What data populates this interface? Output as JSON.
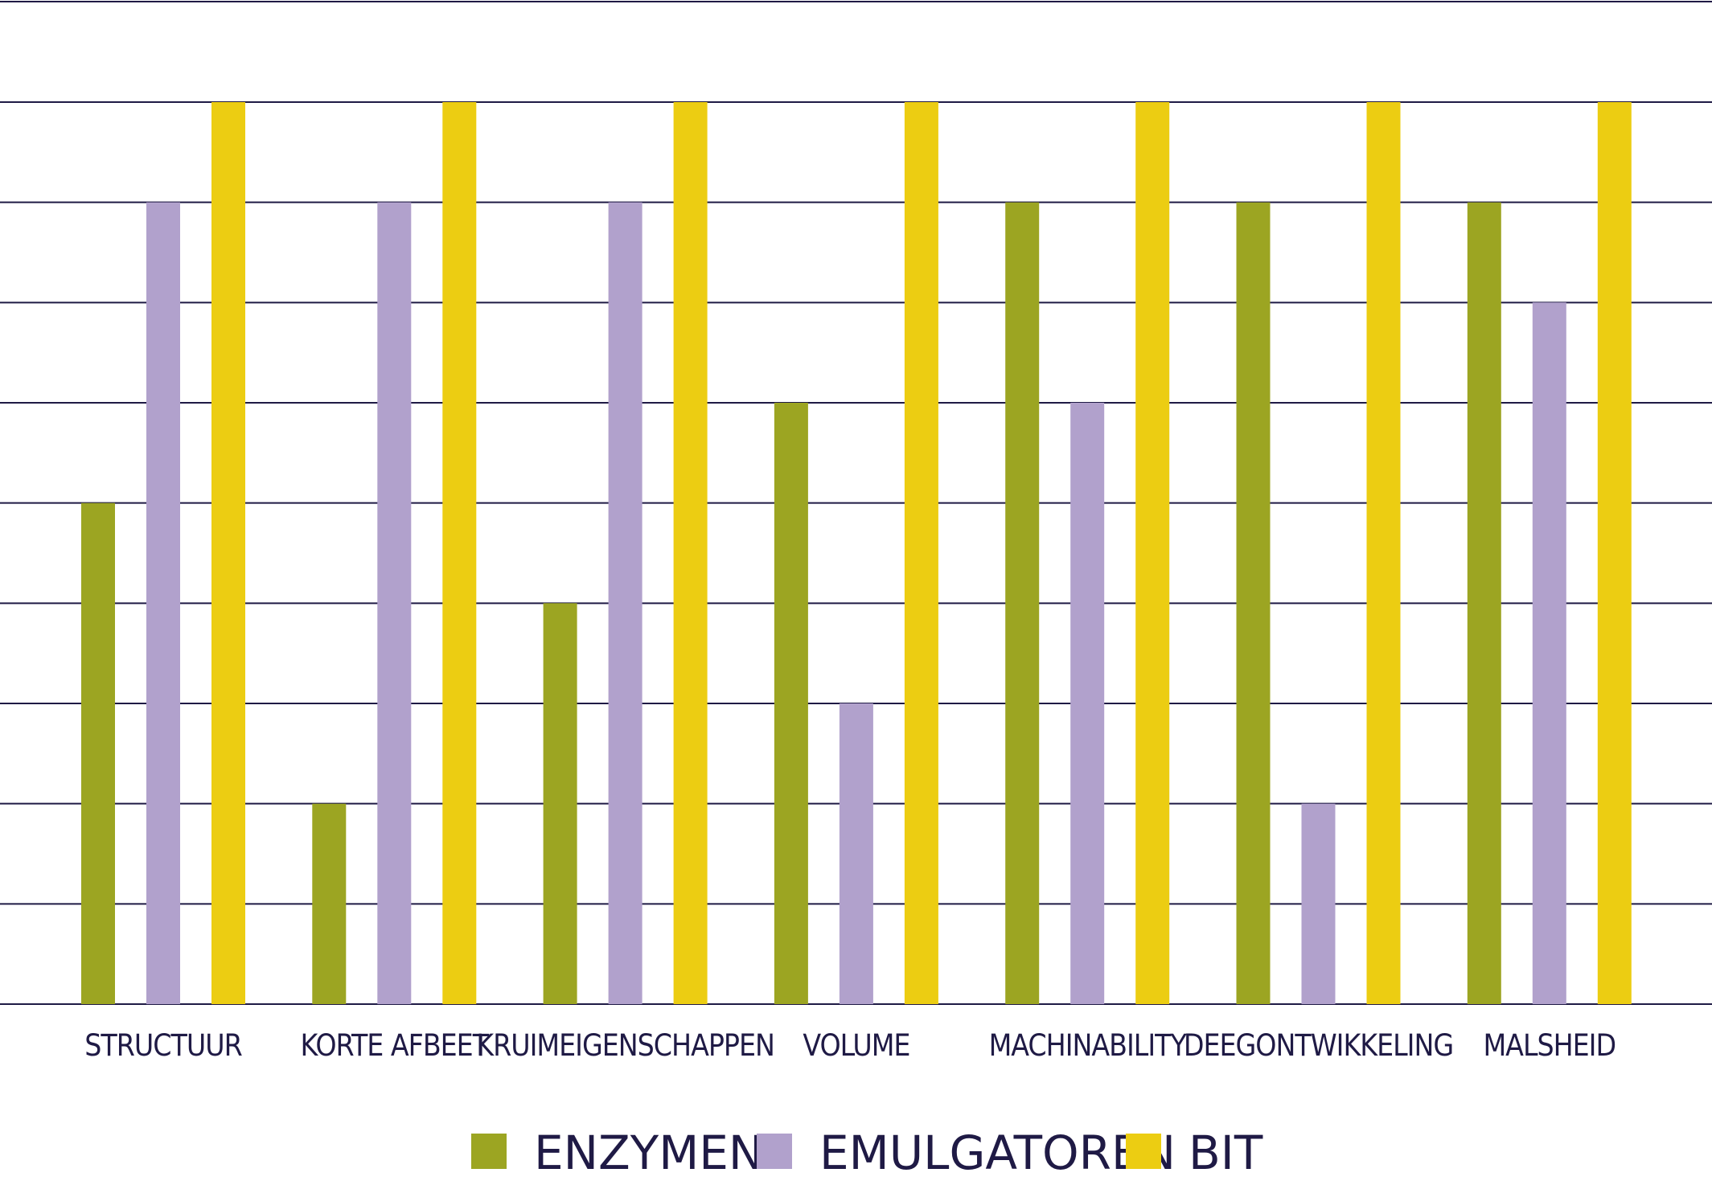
{
  "chart_data": {
    "type": "bar",
    "title": "",
    "xlabel": "",
    "ylabel": "",
    "ylim": [
      0,
      9
    ],
    "grid": true,
    "legend_position": "bottom",
    "categories": [
      "STRUCTUUR",
      "KORTE AFBEET",
      "KRUIMEIGENSCHAPPEN",
      "VOLUME",
      "MACHINABILITY",
      "DEEGONTWIKKELING",
      "MALSHEID"
    ],
    "series": [
      {
        "name": "ENZYMEN",
        "color": "#9ca522",
        "values": [
          5,
          2,
          4,
          6,
          8,
          8,
          8
        ]
      },
      {
        "name": "EMULGATOREN",
        "color": "#b1a1cc",
        "values": [
          8,
          8,
          8,
          3,
          6,
          2,
          7
        ]
      },
      {
        "name": "BIT",
        "color": "#eccd12",
        "values": [
          9,
          9,
          9,
          9,
          9,
          9,
          9
        ]
      }
    ]
  }
}
